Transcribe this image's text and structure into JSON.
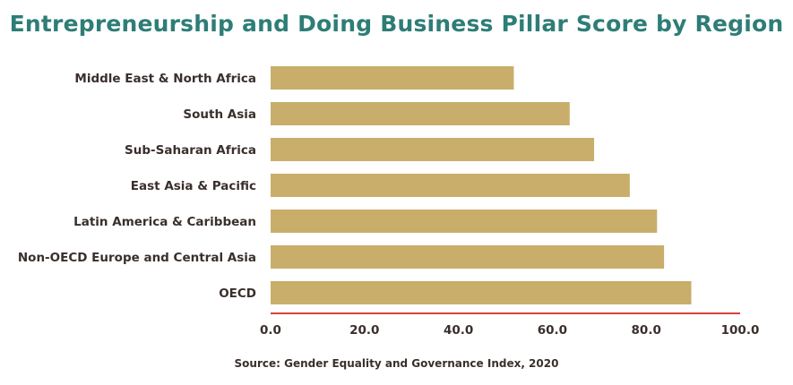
{
  "chart_data": {
    "type": "bar",
    "orientation": "horizontal",
    "title": "Entrepreneurship and Doing Business Pillar Score by Region",
    "categories": [
      "Middle East & North Africa",
      "South Asia",
      "Sub-Saharan Africa",
      "East Asia & Pacific",
      "Latin America & Caribbean",
      "Non-OECD Europe and Central Asia",
      "OECD"
    ],
    "values": [
      51.8,
      63.7,
      68.9,
      76.5,
      82.3,
      83.8,
      89.6
    ],
    "xlim": [
      0,
      100
    ],
    "x_ticks": [
      "0.0",
      "20.0",
      "40.0",
      "60.0",
      "80.0",
      "100.0"
    ],
    "xlabel": "",
    "ylabel": "",
    "grid": false,
    "bar_color": "#c8ae6a",
    "axis_color": "#d9413a",
    "title_color": "#2e7d77",
    "source": "Source: Gender Equality and Governance Index, 2020"
  }
}
